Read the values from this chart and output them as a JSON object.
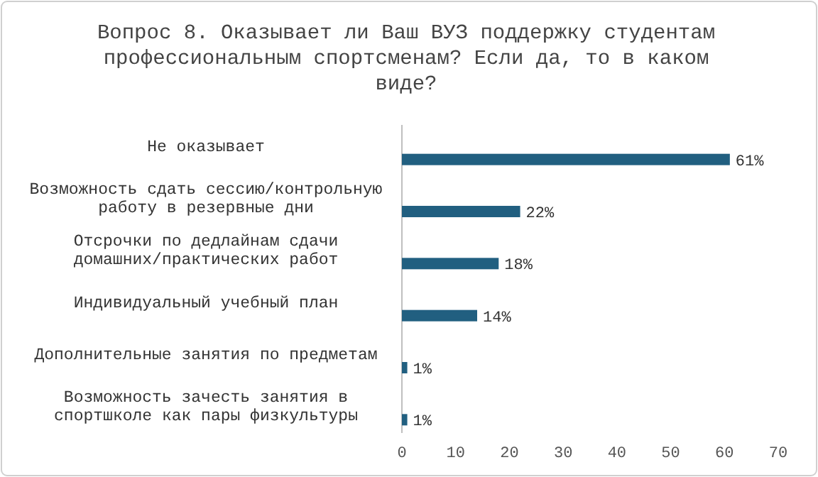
{
  "chart_data": {
    "type": "bar",
    "orientation": "horizontal",
    "title": "Вопрос 8. Оказывает ли Ваш ВУЗ поддержку студентам профессиональным спортсменам? Если да, то в каком виде?",
    "categories": [
      "Не оказывает",
      "Возможность сдать сессию/контрольную работу в резервные дни",
      "Отсрочки по дедлайнам сдачи домашних/практических работ",
      "Индивидуальный учебный план",
      "Дополнительные занятия по предметам",
      "Возможность зачесть занятия в спортшколе как пары физкультуры"
    ],
    "values": [
      61,
      22,
      18,
      14,
      1,
      1
    ],
    "value_labels": [
      "61%",
      "22%",
      "18%",
      "14%",
      "1%",
      "1%"
    ],
    "color": "#215f80",
    "xlim": [
      0,
      70
    ],
    "xticks": [
      0,
      10,
      20,
      30,
      40,
      50,
      60,
      70
    ],
    "grid": false
  }
}
